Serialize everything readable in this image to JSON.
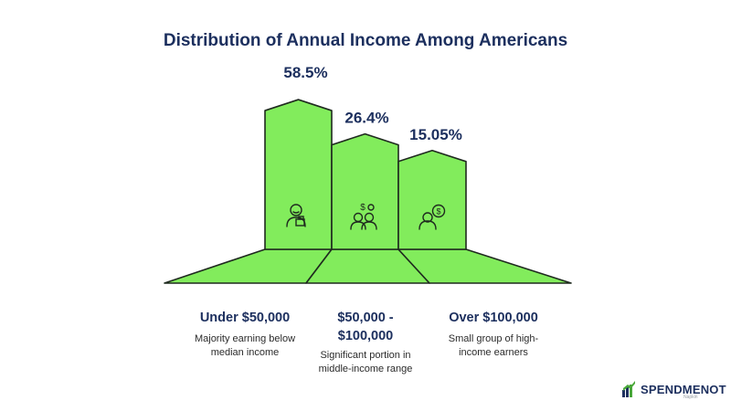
{
  "chart_data": {
    "type": "bar",
    "title": "Distribution of Annual Income Among Americans",
    "categories": [
      "Under $50,000",
      "$50,000 - $100,000",
      "Over $100,000"
    ],
    "category_lines": [
      [
        "Under $50,000"
      ],
      [
        "$50,000 -",
        "$100,000"
      ],
      [
        "Over $100,000"
      ]
    ],
    "values": [
      58.5,
      26.4,
      15.05
    ],
    "value_labels": [
      "58.5%",
      "26.4%",
      "15.05%"
    ],
    "descriptions": [
      [
        "Majority earning below",
        "median income"
      ],
      [
        "Significant portion in",
        "middle-income range"
      ],
      [
        "Small group of high-",
        "income earners"
      ]
    ],
    "icons": [
      "person-at-desk-icon",
      "people-with-money-icon",
      "person-with-dollar-coin-icon"
    ],
    "colors": {
      "fill": "#82ec5c",
      "stroke": "#1f2a1f",
      "title": "#1c2f5e"
    }
  },
  "brand": {
    "name": "SPENDMENOT",
    "small_text": "Napkin"
  }
}
